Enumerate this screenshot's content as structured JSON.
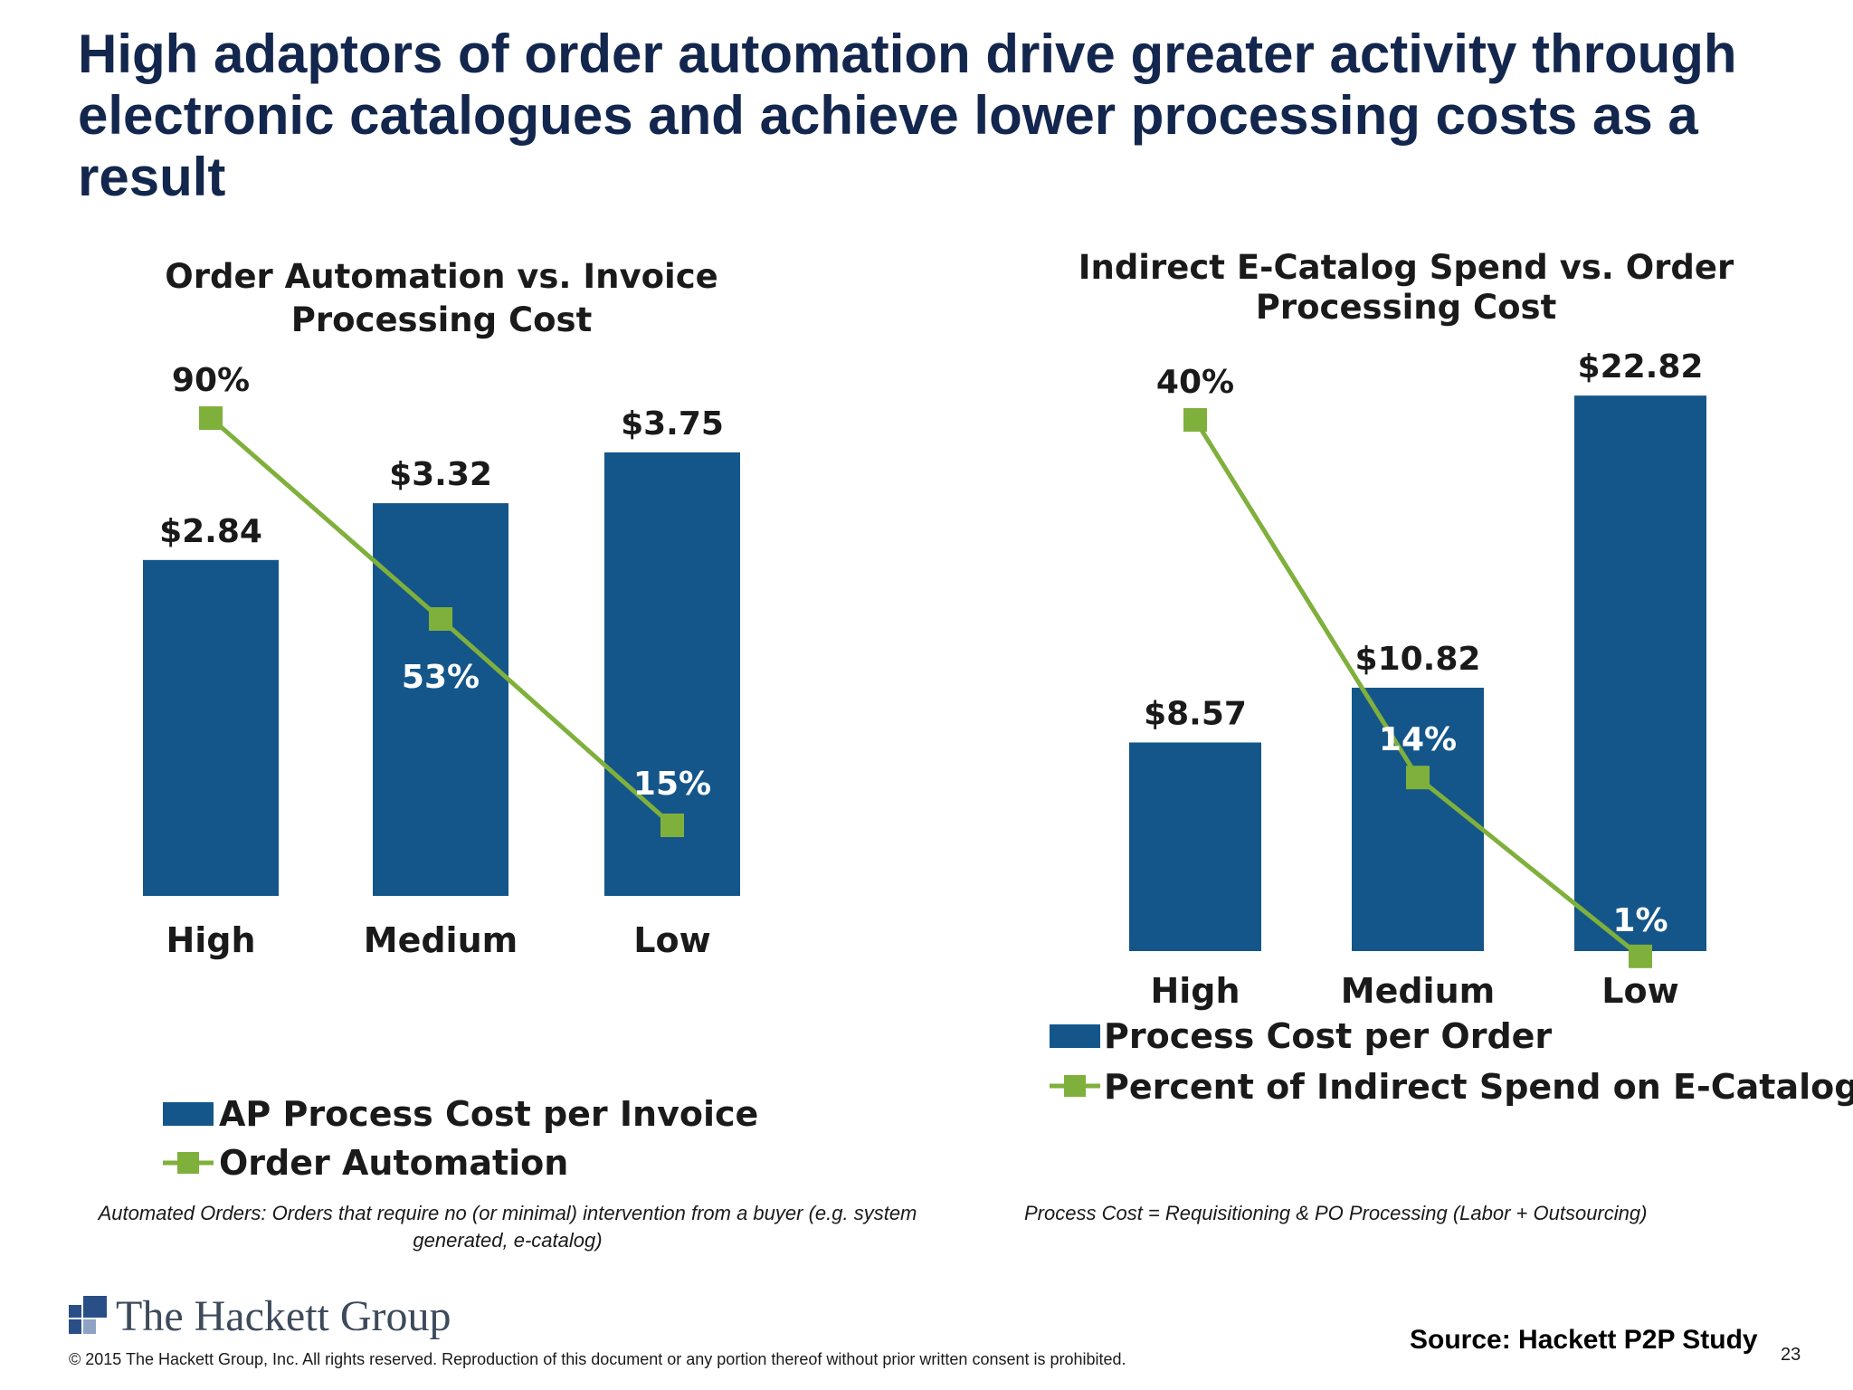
{
  "slide": {
    "title": "High adaptors of order automation drive greater activity through electronic catalogues and achieve lower processing costs as a result",
    "note_left": "Automated Orders: Orders that require no (or minimal) intervention from a buyer (e.g. system generated, e-catalog)",
    "note_right": "Process Cost = Requisitioning & PO Processing (Labor + Outsourcing)",
    "logo_text": "The Hackett Group",
    "copyright": "© 2015 The Hackett Group, Inc.  All rights reserved. Reproduction of this document or any portion thereof without prior written consent is prohibited.",
    "source": "Source:  Hackett P2P Study",
    "page_number": "23"
  },
  "colors": {
    "bar": "#14568a",
    "line": "#80b03c",
    "title": "#13264d"
  },
  "chart_data": [
    {
      "type": "bar",
      "title_lines": [
        "Order Automation vs. Invoice",
        "Processing Cost"
      ],
      "categories": [
        "High",
        "Medium",
        "Low"
      ],
      "series": [
        {
          "name": "AP Process Cost per Invoice",
          "kind": "bar",
          "values": [
            2.84,
            3.32,
            3.75
          ],
          "labels": [
            "$2.84",
            "$3.32",
            "$3.75"
          ]
        },
        {
          "name": "Order Automation",
          "kind": "line",
          "values": [
            90,
            53,
            15
          ],
          "labels": [
            "90%",
            "53%",
            "15%"
          ]
        }
      ],
      "legend_position": "bottom-left"
    },
    {
      "type": "bar",
      "title_lines": [
        "Indirect E-Catalog Spend vs. Order",
        "Processing Cost"
      ],
      "categories": [
        "High",
        "Medium",
        "Low"
      ],
      "series": [
        {
          "name": "Process Cost per Order",
          "kind": "bar",
          "values": [
            8.57,
            10.82,
            22.82
          ],
          "labels": [
            "$8.57",
            "$10.82",
            "$22.82"
          ]
        },
        {
          "name": "Percent of Indirect Spend on E-Catalog",
          "kind": "line",
          "values": [
            40,
            14,
            1
          ],
          "labels": [
            "40%",
            "14%",
            "1%"
          ]
        }
      ],
      "legend_position": "bottom"
    }
  ]
}
